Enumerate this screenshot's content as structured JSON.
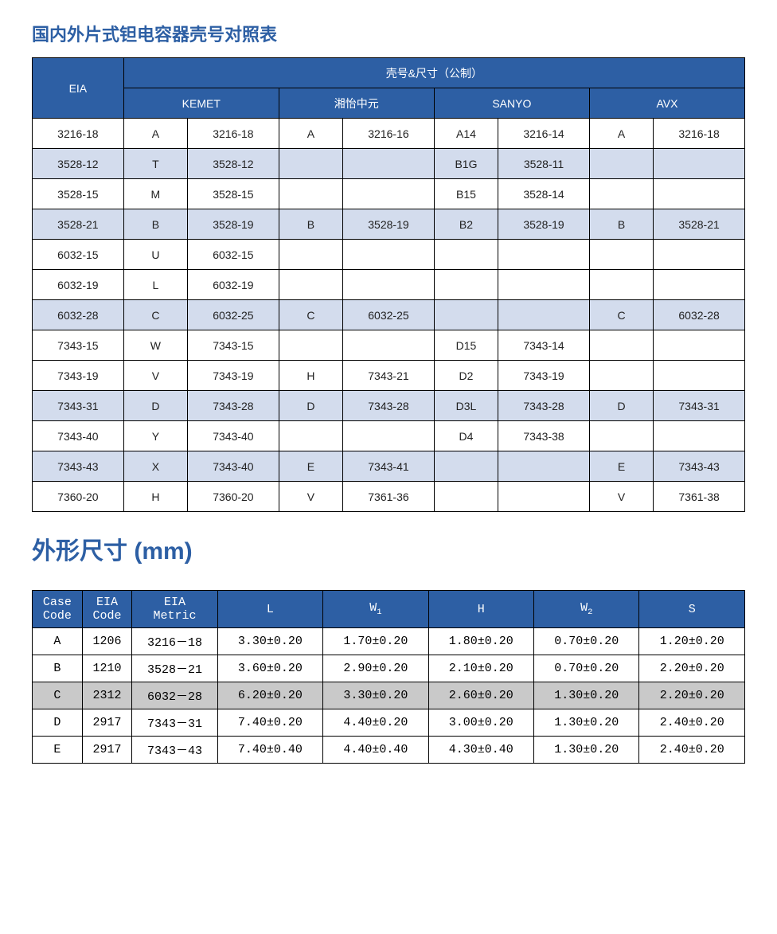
{
  "colors": {
    "header_bg": "#2d5fa4",
    "header_fg": "#ffffff",
    "alt_row_bg": "#d3dced",
    "highlight_row_bg": "#c9c9c9",
    "title_color": "#2d5fa4",
    "border_color": "#000000",
    "body_bg": "#ffffff"
  },
  "title1": "国内外片式钽电容器壳号对照表",
  "title2": "外形尺寸 (mm)",
  "table1": {
    "type": "table",
    "header": {
      "eia": "EIA",
      "group": "壳号&尺寸（公制）",
      "makers": [
        "KEMET",
        "湘怡中元",
        "SANYO",
        "AVX"
      ]
    },
    "rows": [
      {
        "alt": false,
        "eia": "3216-18",
        "cells": [
          "A",
          "3216-18",
          "A",
          "3216-16",
          "A14",
          "3216-14",
          "A",
          "3216-18"
        ]
      },
      {
        "alt": true,
        "eia": "3528-12",
        "cells": [
          "T",
          "3528-12",
          "",
          "",
          "B1G",
          "3528-11",
          "",
          ""
        ]
      },
      {
        "alt": false,
        "eia": "3528-15",
        "cells": [
          "M",
          "3528-15",
          "",
          "",
          "B15",
          "3528-14",
          "",
          ""
        ]
      },
      {
        "alt": true,
        "eia": "3528-21",
        "cells": [
          "B",
          "3528-19",
          "B",
          "3528-19",
          "B2",
          "3528-19",
          "B",
          "3528-21"
        ]
      },
      {
        "alt": false,
        "eia": "6032-15",
        "cells": [
          "U",
          "6032-15",
          "",
          "",
          "",
          "",
          "",
          ""
        ]
      },
      {
        "alt": false,
        "eia": "6032-19",
        "cells": [
          "L",
          "6032-19",
          "",
          "",
          "",
          "",
          "",
          ""
        ]
      },
      {
        "alt": true,
        "eia": "6032-28",
        "cells": [
          "C",
          "6032-25",
          "C",
          "6032-25",
          "",
          "",
          "C",
          "6032-28"
        ]
      },
      {
        "alt": false,
        "eia": "7343-15",
        "cells": [
          "W",
          "7343-15",
          "",
          "",
          "D15",
          "7343-14",
          "",
          ""
        ]
      },
      {
        "alt": false,
        "eia": "7343-19",
        "cells": [
          "V",
          "7343-19",
          "H",
          "7343-21",
          "D2",
          "7343-19",
          "",
          ""
        ]
      },
      {
        "alt": true,
        "eia": "7343-31",
        "cells": [
          "D",
          "7343-28",
          "D",
          "7343-28",
          "D3L",
          "7343-28",
          "D",
          "7343-31"
        ]
      },
      {
        "alt": false,
        "eia": "7343-40",
        "cells": [
          "Y",
          "7343-40",
          "",
          "",
          "D4",
          "7343-38",
          "",
          ""
        ]
      },
      {
        "alt": true,
        "eia": "7343-43",
        "cells": [
          "X",
          "7343-40",
          "E",
          "7343-41",
          "",
          "",
          "E",
          "7343-43"
        ]
      },
      {
        "alt": false,
        "eia": "7360-20",
        "cells": [
          "H",
          "7360-20",
          "V",
          "7361-36",
          "",
          "",
          "V",
          "7361-38"
        ]
      }
    ]
  },
  "table2": {
    "type": "table",
    "headers": {
      "case": "Case\nCode",
      "eia": "EIA\nCode",
      "metric": "EIA\nMetric",
      "L": "L",
      "W1_prefix": "W",
      "W1_sub": "1",
      "H": "H",
      "W2_prefix": "W",
      "W2_sub": "2",
      "S": "S"
    },
    "rows": [
      {
        "hl": false,
        "case": "A",
        "eia": "1206",
        "metric": "3216－18",
        "L": "3.30±0.20",
        "W1": "1.70±0.20",
        "H": "1.80±0.20",
        "W2": "0.70±0.20",
        "S": "1.20±0.20"
      },
      {
        "hl": false,
        "case": "B",
        "eia": "1210",
        "metric": "3528－21",
        "L": "3.60±0.20",
        "W1": "2.90±0.20",
        "H": "2.10±0.20",
        "W2": "0.70±0.20",
        "S": "2.20±0.20"
      },
      {
        "hl": true,
        "case": "C",
        "eia": "2312",
        "metric": "6032－28",
        "L": "6.20±0.20",
        "W1": "3.30±0.20",
        "H": "2.60±0.20",
        "W2": "1.30±0.20",
        "S": "2.20±0.20"
      },
      {
        "hl": false,
        "case": "D",
        "eia": "2917",
        "metric": "7343－31",
        "L": "7.40±0.20",
        "W1": "4.40±0.20",
        "H": "3.00±0.20",
        "W2": "1.30±0.20",
        "S": "2.40±0.20"
      },
      {
        "hl": false,
        "case": "E",
        "eia": "2917",
        "metric": "7343－43",
        "L": "7.40±0.40",
        "W1": "4.40±0.40",
        "H": "4.30±0.40",
        "W2": "1.30±0.20",
        "S": "2.40±0.20"
      }
    ]
  }
}
